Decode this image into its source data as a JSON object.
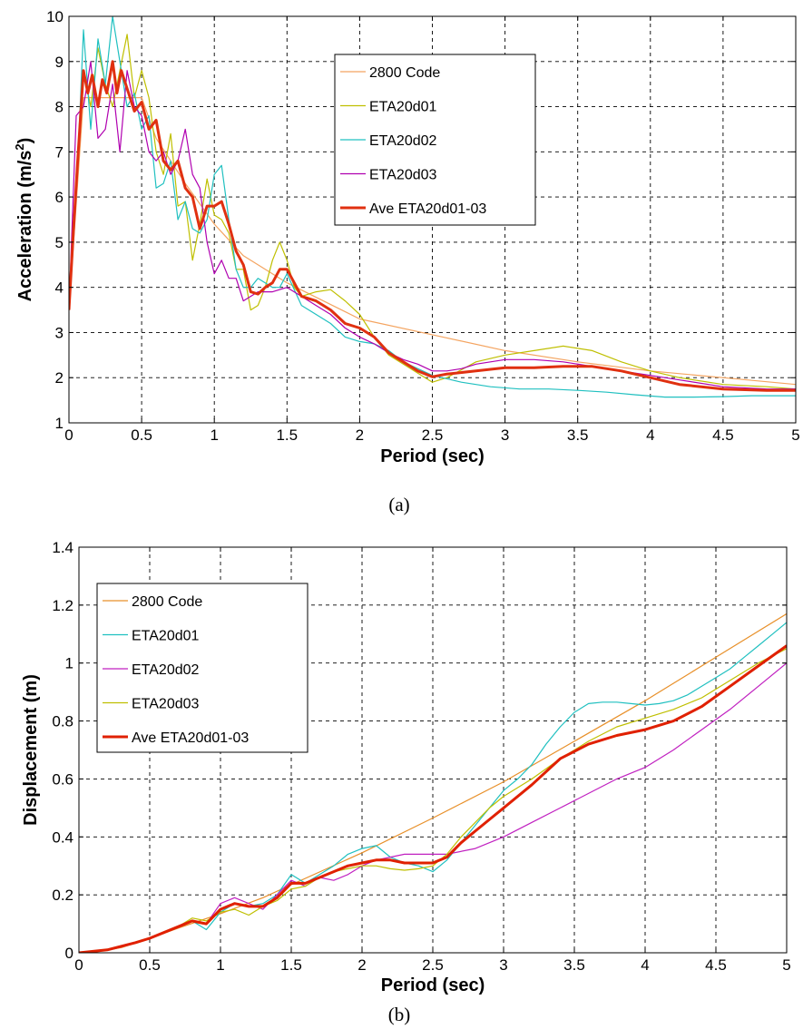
{
  "chart_data": [
    {
      "type": "line",
      "caption": "(a)",
      "xlabel": "Period (sec)",
      "ylabel": "Acceleration (m/s",
      "ylabel_sup": "2",
      "ylabel_end": ")",
      "xlim": [
        0,
        5
      ],
      "ylim": [
        1,
        10
      ],
      "xticks": [
        "0",
        "0.5",
        "1",
        "1.5",
        "2",
        "2.5",
        "3",
        "3.5",
        "4",
        "4.5",
        "5"
      ],
      "yticks": [
        "1",
        "2",
        "3",
        "4",
        "5",
        "6",
        "7",
        "8",
        "9",
        "10"
      ],
      "grid": true,
      "legend_position": "top-right",
      "series": [
        {
          "name": "2800 Code",
          "color": "#f4a460",
          "width": 1.2,
          "x": [
            0,
            0.1,
            0.5,
            0.6,
            0.8,
            1.0,
            1.2,
            1.5,
            2.0,
            2.5,
            3.0,
            3.5,
            4.0,
            4.5,
            5.0
          ],
          "y": [
            3.5,
            8.2,
            8.2,
            7.3,
            6.3,
            5.4,
            4.7,
            4.1,
            3.3,
            2.95,
            2.6,
            2.35,
            2.15,
            2.0,
            1.85
          ]
        },
        {
          "name": "ETA20d01",
          "color": "#bfbf00",
          "width": 1.2,
          "x": [
            0,
            0.05,
            0.1,
            0.15,
            0.2,
            0.25,
            0.3,
            0.35,
            0.4,
            0.45,
            0.5,
            0.55,
            0.6,
            0.65,
            0.7,
            0.75,
            0.8,
            0.85,
            0.9,
            0.95,
            1.0,
            1.05,
            1.1,
            1.15,
            1.2,
            1.25,
            1.3,
            1.35,
            1.4,
            1.45,
            1.5,
            1.55,
            1.6,
            1.7,
            1.8,
            1.9,
            2.0,
            2.1,
            2.2,
            2.3,
            2.4,
            2.5,
            2.6,
            2.8,
            3.0,
            3.2,
            3.4,
            3.6,
            3.8,
            4.0,
            4.2,
            4.5,
            4.8,
            5.0
          ],
          "y": [
            3.5,
            6.5,
            8.8,
            8.0,
            9.3,
            8.5,
            8.0,
            8.8,
            9.6,
            8.2,
            8.8,
            8.2,
            7.0,
            6.5,
            7.4,
            5.8,
            5.9,
            4.6,
            5.4,
            6.4,
            5.6,
            5.5,
            5.2,
            4.4,
            4.4,
            3.5,
            3.6,
            4.0,
            4.6,
            5.0,
            4.6,
            4.0,
            3.8,
            3.9,
            3.95,
            3.7,
            3.4,
            2.9,
            2.5,
            2.3,
            2.1,
            1.9,
            2.0,
            2.35,
            2.5,
            2.6,
            2.7,
            2.6,
            2.35,
            2.15,
            2.0,
            1.85,
            1.8,
            1.75
          ]
        },
        {
          "name": "ETA20d02",
          "color": "#20c0c0",
          "width": 1.2,
          "x": [
            0,
            0.05,
            0.1,
            0.15,
            0.2,
            0.25,
            0.3,
            0.35,
            0.4,
            0.45,
            0.5,
            0.55,
            0.6,
            0.65,
            0.7,
            0.75,
            0.8,
            0.85,
            0.9,
            0.95,
            1.0,
            1.05,
            1.1,
            1.15,
            1.2,
            1.25,
            1.3,
            1.35,
            1.4,
            1.45,
            1.5,
            1.6,
            1.7,
            1.8,
            1.9,
            2.0,
            2.1,
            2.2,
            2.3,
            2.4,
            2.5,
            2.7,
            2.9,
            3.1,
            3.3,
            3.5,
            3.7,
            3.9,
            4.1,
            4.3,
            4.5,
            4.7,
            5.0
          ],
          "y": [
            3.5,
            6.0,
            9.7,
            7.5,
            9.5,
            8.5,
            10.0,
            9.0,
            8.0,
            8.3,
            7.5,
            7.8,
            6.2,
            6.3,
            6.8,
            5.5,
            5.9,
            5.3,
            5.2,
            5.5,
            6.5,
            6.7,
            5.5,
            4.4,
            4.0,
            4.0,
            4.2,
            4.1,
            4.0,
            4.0,
            4.3,
            3.6,
            3.4,
            3.2,
            2.9,
            2.8,
            2.75,
            2.6,
            2.35,
            2.2,
            2.05,
            1.9,
            1.8,
            1.75,
            1.75,
            1.72,
            1.68,
            1.62,
            1.57,
            1.57,
            1.58,
            1.6,
            1.6
          ]
        },
        {
          "name": "ETA20d03",
          "color": "#b000b0",
          "width": 1.2,
          "x": [
            0,
            0.05,
            0.1,
            0.15,
            0.2,
            0.25,
            0.3,
            0.35,
            0.4,
            0.45,
            0.5,
            0.55,
            0.6,
            0.65,
            0.7,
            0.75,
            0.8,
            0.85,
            0.9,
            0.95,
            1.0,
            1.05,
            1.1,
            1.15,
            1.2,
            1.3,
            1.4,
            1.5,
            1.6,
            1.7,
            1.8,
            1.9,
            2.0,
            2.1,
            2.2,
            2.3,
            2.4,
            2.5,
            2.6,
            2.7,
            2.8,
            3.0,
            3.2,
            3.4,
            3.6,
            3.8,
            4.0,
            4.2,
            4.5,
            4.8,
            5.0
          ],
          "y": [
            3.5,
            7.8,
            8.0,
            9.0,
            7.3,
            7.5,
            8.5,
            7.0,
            8.8,
            8.0,
            7.8,
            7.0,
            6.8,
            7.0,
            6.5,
            6.8,
            7.5,
            6.5,
            6.2,
            5.0,
            4.3,
            4.6,
            4.2,
            4.2,
            3.7,
            3.9,
            3.9,
            4.0,
            3.8,
            3.6,
            3.4,
            3.1,
            2.9,
            2.75,
            2.55,
            2.4,
            2.3,
            2.15,
            2.15,
            2.2,
            2.3,
            2.4,
            2.4,
            2.35,
            2.25,
            2.15,
            2.05,
            1.95,
            1.8,
            1.75,
            1.75
          ]
        },
        {
          "name": "Ave ETA20d01-03",
          "color": "#e03010",
          "width": 3,
          "x": [
            0,
            0.03,
            0.06,
            0.1,
            0.13,
            0.16,
            0.2,
            0.23,
            0.26,
            0.3,
            0.33,
            0.36,
            0.4,
            0.45,
            0.5,
            0.55,
            0.6,
            0.65,
            0.7,
            0.75,
            0.8,
            0.85,
            0.9,
            0.95,
            1.0,
            1.05,
            1.1,
            1.15,
            1.2,
            1.25,
            1.3,
            1.35,
            1.4,
            1.45,
            1.5,
            1.55,
            1.6,
            1.7,
            1.8,
            1.9,
            2.0,
            2.1,
            2.2,
            2.3,
            2.4,
            2.5,
            2.6,
            2.8,
            3.0,
            3.2,
            3.4,
            3.6,
            3.8,
            4.0,
            4.2,
            4.5,
            4.8,
            5.0
          ],
          "y": [
            3.5,
            5.2,
            6.8,
            8.8,
            8.3,
            8.7,
            8.0,
            8.6,
            8.3,
            9.0,
            8.3,
            8.8,
            8.4,
            7.9,
            8.1,
            7.5,
            7.7,
            6.8,
            6.6,
            6.8,
            6.2,
            6.0,
            5.3,
            5.8,
            5.8,
            5.9,
            5.4,
            4.8,
            4.5,
            3.9,
            3.85,
            4.0,
            4.1,
            4.4,
            4.4,
            4.1,
            3.8,
            3.7,
            3.5,
            3.2,
            3.1,
            2.9,
            2.55,
            2.35,
            2.15,
            2.02,
            2.08,
            2.15,
            2.22,
            2.22,
            2.25,
            2.25,
            2.15,
            2.0,
            1.85,
            1.75,
            1.72,
            1.72
          ]
        }
      ]
    },
    {
      "type": "line",
      "caption": "(b)",
      "xlabel": "Period (sec)",
      "ylabel": "Displacement (m)",
      "xlim": [
        0,
        5
      ],
      "ylim": [
        0,
        1.4
      ],
      "xticks": [
        "0",
        "0.5",
        "1",
        "1.5",
        "2",
        "2.5",
        "3",
        "3.5",
        "4",
        "4.5",
        "5"
      ],
      "yticks": [
        "0",
        "0.2",
        "0.4",
        "0.6",
        "0.8",
        "1",
        "1.2",
        "1.4"
      ],
      "grid": true,
      "legend_position": "top-left",
      "series": [
        {
          "name": "2800 Code",
          "color": "#e8902a",
          "width": 1.2,
          "x": [
            0,
            0.1,
            0.3,
            0.5,
            0.7,
            1.0,
            1.3,
            1.5,
            2.0,
            2.5,
            3.0,
            3.5,
            4.0,
            4.5,
            5.0
          ],
          "y": [
            0,
            0.002,
            0.018,
            0.05,
            0.085,
            0.135,
            0.19,
            0.235,
            0.345,
            0.465,
            0.59,
            0.73,
            0.87,
            1.02,
            1.17
          ]
        },
        {
          "name": "ETA20d01",
          "color": "#20c0c0",
          "width": 1.2,
          "x": [
            0,
            0.2,
            0.4,
            0.5,
            0.6,
            0.7,
            0.8,
            0.9,
            1.0,
            1.1,
            1.2,
            1.3,
            1.4,
            1.5,
            1.6,
            1.7,
            1.8,
            1.9,
            2.0,
            2.1,
            2.2,
            2.3,
            2.4,
            2.5,
            2.6,
            2.7,
            2.8,
            2.9,
            3.0,
            3.1,
            3.2,
            3.3,
            3.4,
            3.5,
            3.6,
            3.7,
            3.8,
            3.9,
            4.0,
            4.1,
            4.2,
            4.3,
            4.4,
            4.5,
            4.6,
            4.7,
            4.8,
            4.9,
            5.0
          ],
          "y": [
            0,
            0.01,
            0.035,
            0.05,
            0.07,
            0.09,
            0.11,
            0.08,
            0.14,
            0.17,
            0.16,
            0.17,
            0.2,
            0.27,
            0.24,
            0.27,
            0.3,
            0.34,
            0.36,
            0.37,
            0.33,
            0.31,
            0.3,
            0.28,
            0.32,
            0.38,
            0.44,
            0.5,
            0.56,
            0.6,
            0.65,
            0.72,
            0.78,
            0.83,
            0.86,
            0.865,
            0.865,
            0.86,
            0.855,
            0.86,
            0.87,
            0.89,
            0.92,
            0.95,
            0.98,
            1.02,
            1.06,
            1.1,
            1.14
          ]
        },
        {
          "name": "ETA20d02",
          "color": "#c020c0",
          "width": 1.2,
          "x": [
            0,
            0.2,
            0.4,
            0.5,
            0.6,
            0.7,
            0.8,
            0.9,
            1.0,
            1.1,
            1.2,
            1.3,
            1.4,
            1.5,
            1.6,
            1.7,
            1.8,
            1.9,
            2.0,
            2.1,
            2.2,
            2.3,
            2.4,
            2.5,
            2.6,
            2.8,
            3.0,
            3.2,
            3.4,
            3.6,
            3.8,
            4.0,
            4.2,
            4.4,
            4.6,
            4.8,
            5.0
          ],
          "y": [
            0,
            0.01,
            0.035,
            0.05,
            0.07,
            0.09,
            0.11,
            0.1,
            0.17,
            0.19,
            0.17,
            0.15,
            0.2,
            0.25,
            0.23,
            0.26,
            0.25,
            0.27,
            0.3,
            0.32,
            0.33,
            0.34,
            0.34,
            0.34,
            0.34,
            0.36,
            0.4,
            0.45,
            0.5,
            0.55,
            0.6,
            0.64,
            0.7,
            0.77,
            0.84,
            0.92,
            1.0
          ]
        },
        {
          "name": "ETA20d03",
          "color": "#bfbf00",
          "width": 1.2,
          "x": [
            0,
            0.2,
            0.4,
            0.5,
            0.6,
            0.7,
            0.8,
            0.9,
            1.0,
            1.1,
            1.2,
            1.3,
            1.4,
            1.5,
            1.6,
            1.7,
            1.8,
            1.9,
            2.0,
            2.1,
            2.2,
            2.3,
            2.4,
            2.5,
            2.6,
            2.7,
            2.8,
            2.9,
            3.0,
            3.2,
            3.4,
            3.6,
            3.8,
            4.0,
            4.2,
            4.4,
            4.6,
            4.8,
            5.0
          ],
          "y": [
            0,
            0.01,
            0.035,
            0.05,
            0.07,
            0.09,
            0.12,
            0.11,
            0.14,
            0.15,
            0.13,
            0.16,
            0.18,
            0.22,
            0.23,
            0.26,
            0.28,
            0.29,
            0.3,
            0.3,
            0.29,
            0.285,
            0.29,
            0.3,
            0.34,
            0.4,
            0.45,
            0.5,
            0.54,
            0.6,
            0.67,
            0.73,
            0.78,
            0.81,
            0.84,
            0.88,
            0.94,
            1.0,
            1.05
          ]
        },
        {
          "name": "Ave ETA20d01-03",
          "color": "#e02000",
          "width": 3,
          "x": [
            0,
            0.2,
            0.4,
            0.5,
            0.6,
            0.7,
            0.8,
            0.9,
            1.0,
            1.1,
            1.2,
            1.3,
            1.4,
            1.5,
            1.6,
            1.7,
            1.8,
            1.9,
            2.0,
            2.1,
            2.2,
            2.3,
            2.4,
            2.5,
            2.6,
            2.7,
            2.8,
            2.9,
            3.0,
            3.2,
            3.4,
            3.6,
            3.8,
            4.0,
            4.2,
            4.4,
            4.6,
            4.8,
            5.0
          ],
          "y": [
            0,
            0.01,
            0.035,
            0.05,
            0.07,
            0.09,
            0.11,
            0.1,
            0.15,
            0.17,
            0.16,
            0.16,
            0.19,
            0.24,
            0.24,
            0.26,
            0.28,
            0.3,
            0.31,
            0.32,
            0.32,
            0.31,
            0.31,
            0.31,
            0.33,
            0.38,
            0.42,
            0.46,
            0.5,
            0.58,
            0.67,
            0.72,
            0.75,
            0.77,
            0.8,
            0.85,
            0.92,
            0.99,
            1.06
          ]
        }
      ]
    }
  ]
}
